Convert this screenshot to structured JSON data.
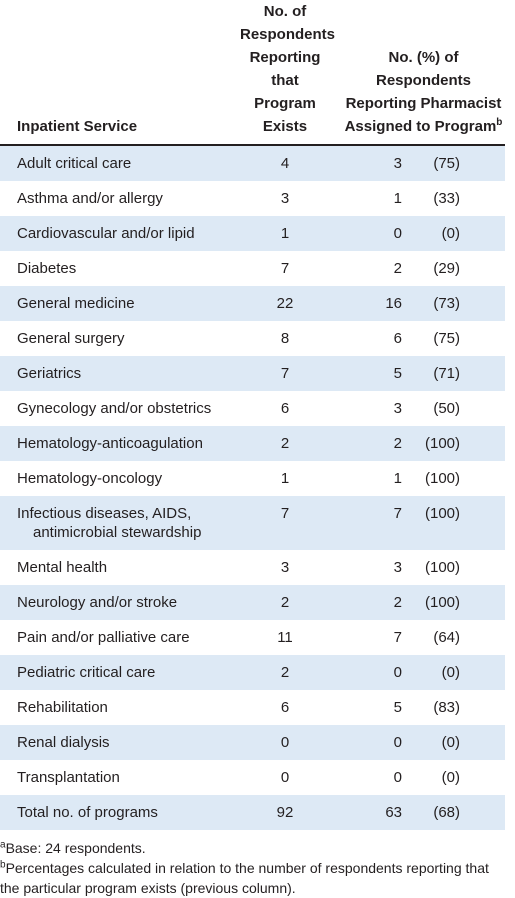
{
  "header": {
    "columns": [
      "Inpatient Service",
      "No. of Respondents Reporting that Program Exists",
      "No. (%) of Respondents Reporting Pharmacist Assigned to Program"
    ],
    "superscript": "b"
  },
  "rows": [
    [
      "Adult critical care",
      "4",
      "3",
      "(75)"
    ],
    [
      "Asthma and/or allergy",
      "3",
      "1",
      "(33)"
    ],
    [
      "Cardiovascular and/or lipid",
      "1",
      "0",
      "(0)"
    ],
    [
      "Diabetes",
      "7",
      "2",
      "(29)"
    ],
    [
      "General medicine",
      "22",
      "16",
      "(73)"
    ],
    [
      "General surgery",
      "8",
      "6",
      "(75)"
    ],
    [
      "Geriatrics",
      "7",
      "5",
      "(71)"
    ],
    [
      "Gynecology and/or obstetrics",
      "6",
      "3",
      "(50)"
    ],
    [
      "Hematology-anticoagulation",
      "2",
      "2",
      "(100)"
    ],
    [
      "Hematology-oncology",
      "1",
      "1",
      "(100)"
    ],
    [
      "Infectious diseases, AIDS, antimicrobial stewardship",
      "7",
      "7",
      "(100)"
    ],
    [
      "Mental health",
      "3",
      "3",
      "(100)"
    ],
    [
      "Neurology and/or stroke",
      "2",
      "2",
      "(100)"
    ],
    [
      "Pain and/or palliative care",
      "11",
      "7",
      "(64)"
    ],
    [
      "Pediatric critical care",
      "2",
      "0",
      "(0)"
    ],
    [
      "Rehabilitation",
      "6",
      "5",
      "(83)"
    ],
    [
      "Renal dialysis",
      "0",
      "0",
      "(0)"
    ],
    [
      "Transplantation",
      "0",
      "0",
      "(0)"
    ],
    [
      "Total no. of programs",
      "92",
      "63",
      "(68)"
    ]
  ],
  "footnotes": [
    {
      "mark": "a",
      "text": "Base: 24 respondents."
    },
    {
      "mark": "b",
      "text": "Percentages calculated in relation to the number of respondents reporting that the particular program exists (previous column)."
    }
  ]
}
